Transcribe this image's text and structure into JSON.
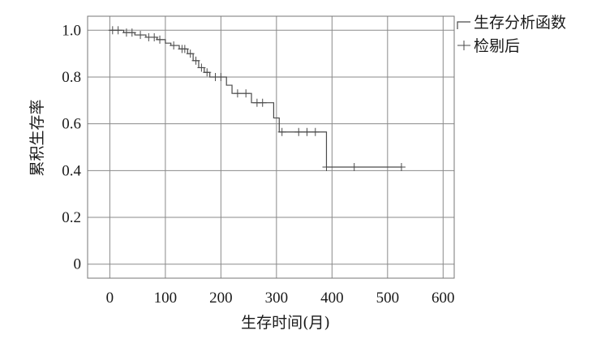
{
  "chart_data": {
    "type": "line",
    "step": true,
    "xlabel": "生存时间(月)",
    "ylabel": "累积生存率",
    "xlim": [
      -40,
      620
    ],
    "ylim": [
      -0.06,
      1.06
    ],
    "xticks": [
      0,
      100,
      200,
      300,
      400,
      500,
      600
    ],
    "yticks": [
      0,
      0.2,
      0.4,
      0.6,
      0.8,
      1.0
    ],
    "ytick_labels": [
      "0",
      "0.2",
      "0.4",
      "0.6",
      "0.8",
      "1.0"
    ],
    "grid": true,
    "legend": {
      "placement": "top-right-outside",
      "entries": [
        "生存分析函数",
        "检剔后"
      ]
    },
    "series": [
      {
        "name": "生存分析函数",
        "kind": "step",
        "x": [
          0,
          25,
          45,
          65,
          85,
          100,
          110,
          125,
          140,
          150,
          160,
          170,
          180,
          210,
          220,
          255,
          295,
          305,
          390,
          525
        ],
        "y": [
          1.0,
          0.99,
          0.98,
          0.97,
          0.96,
          0.945,
          0.935,
          0.92,
          0.9,
          0.87,
          0.84,
          0.82,
          0.8,
          0.765,
          0.73,
          0.69,
          0.625,
          0.565,
          0.415,
          0.415
        ]
      },
      {
        "name": "检剔后",
        "kind": "censor",
        "x": [
          5,
          15,
          30,
          40,
          55,
          70,
          80,
          90,
          115,
          130,
          135,
          145,
          155,
          165,
          175,
          190,
          200,
          230,
          245,
          265,
          275,
          310,
          340,
          355,
          370,
          390,
          440,
          525
        ],
        "y": [
          1.0,
          1.0,
          0.99,
          0.99,
          0.98,
          0.97,
          0.97,
          0.96,
          0.935,
          0.92,
          0.92,
          0.9,
          0.87,
          0.84,
          0.82,
          0.8,
          0.8,
          0.73,
          0.73,
          0.69,
          0.69,
          0.565,
          0.565,
          0.565,
          0.565,
          0.415,
          0.415,
          0.415
        ]
      }
    ]
  }
}
